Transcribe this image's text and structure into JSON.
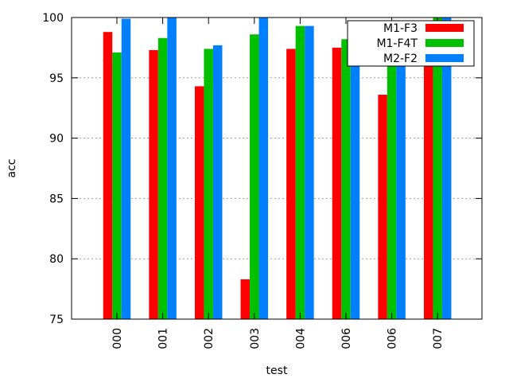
{
  "chart_data": {
    "type": "bar",
    "title": "",
    "xlabel": "test",
    "ylabel": "acc",
    "ylim": [
      75,
      100
    ],
    "yticks": [
      75,
      80,
      85,
      90,
      95,
      100
    ],
    "grid": "horizontal dotted",
    "legend_position": "top-right",
    "categories": [
      "000",
      "001",
      "002",
      "003",
      "004",
      "006",
      "006",
      "007"
    ],
    "series": [
      {
        "name": "M1-F3",
        "color": "#ff0000",
        "values": [
          98.8,
          97.3,
          94.3,
          78.3,
          97.4,
          97.5,
          93.6,
          97.6
        ]
      },
      {
        "name": "M1-F4T",
        "color": "#00c000",
        "values": [
          97.1,
          98.3,
          97.4,
          98.6,
          99.3,
          98.2,
          99.1,
          100.0
        ]
      },
      {
        "name": "M2-F2",
        "color": "#0080ff",
        "values": [
          99.9,
          100.0,
          97.7,
          100.0,
          99.3,
          98.4,
          99.4,
          100.0
        ]
      }
    ]
  }
}
